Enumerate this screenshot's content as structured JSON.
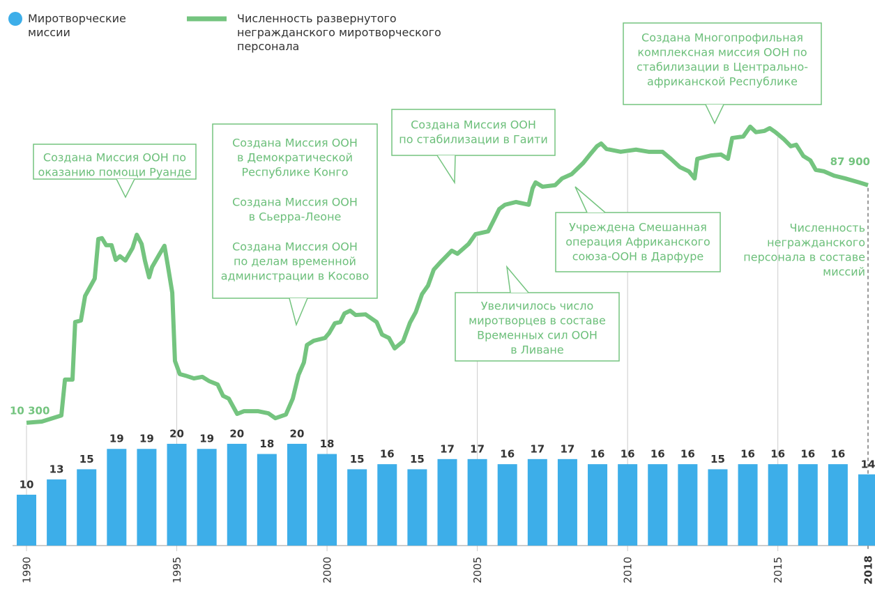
{
  "chart_data": {
    "type": "bar",
    "x": [
      1990,
      1991,
      1992,
      1993,
      1994,
      1995,
      1996,
      1997,
      1998,
      1999,
      2000,
      2001,
      2002,
      2003,
      2004,
      2005,
      2006,
      2007,
      2008,
      2009,
      2010,
      2011,
      2012,
      2013,
      2014,
      2015,
      2016,
      2017,
      2018
    ],
    "series": [
      {
        "name": "Миротворческие миссии",
        "type": "bar",
        "color": "#3daee9",
        "values": [
          10,
          13,
          15,
          19,
          19,
          20,
          19,
          20,
          18,
          20,
          18,
          15,
          16,
          15,
          17,
          17,
          16,
          17,
          17,
          16,
          16,
          16,
          16,
          15,
          16,
          16,
          16,
          16,
          14
        ]
      },
      {
        "name": "Численность развернутого негражданского миротворческого персонала",
        "type": "line",
        "axis": "y2",
        "color": "#74c47f",
        "x": [
          1990,
          1990.51,
          1991.16,
          1991.28,
          1991.53,
          1991.62,
          1991.81,
          1991.95,
          1992.27,
          1992.39,
          1992.51,
          1992.65,
          1992.83,
          1992.97,
          1993.11,
          1993.29,
          1993.53,
          1993.67,
          1993.83,
          1993.94,
          1994.08,
          1994.18,
          1994.41,
          1994.59,
          1994.71,
          1994.85,
          1994.94,
          1995.1,
          1995.29,
          1995.57,
          1995.85,
          1996.08,
          1996.36,
          1996.54,
          1996.73,
          1997.01,
          1997.24,
          1997.7,
          1998.05,
          1998.28,
          1998.63,
          1998.86,
          1999.05,
          1999.23,
          1999.33,
          1999.56,
          1999.93,
          2000.07,
          2000.26,
          2000.44,
          2000.58,
          2000.77,
          2000.95,
          2001.28,
          2001.65,
          2001.83,
          2002.06,
          2002.25,
          2002.53,
          2002.76,
          2002.95,
          2003.16,
          2003.36,
          2003.55,
          2003.78,
          2004.15,
          2004.34,
          2004.71,
          2004.94,
          2005.36,
          2005.55,
          2005.73,
          2005.92,
          2006.29,
          2006.71,
          2006.84,
          2006.94,
          2007.17,
          2007.59,
          2007.82,
          2008.14,
          2008.52,
          2008.75,
          2008.98,
          2009.12,
          2009.3,
          2009.77,
          2010.28,
          2010.7,
          2011.16,
          2011.44,
          2011.74,
          2012.04,
          2012.23,
          2012.32,
          2012.78,
          2013.11,
          2013.34,
          2013.48,
          2013.85,
          2014.08,
          2014.27,
          2014.55,
          2014.73,
          2014.92,
          2015.2,
          2015.43,
          2015.61,
          2015.85,
          2016.08,
          2016.26,
          2016.54,
          2016.87,
          2017.24,
          2017.7,
          2018
        ],
        "values": [
          10300,
          10700,
          12700,
          24400,
          24400,
          43200,
          43700,
          51700,
          57400,
          70300,
          70600,
          68300,
          68300,
          63500,
          64700,
          63300,
          67400,
          71700,
          68700,
          63300,
          57800,
          61200,
          65100,
          68100,
          61200,
          52800,
          30500,
          26200,
          25700,
          24800,
          25300,
          23900,
          22800,
          19100,
          18200,
          13200,
          14100,
          14100,
          13400,
          11800,
          13000,
          18200,
          25900,
          30000,
          35700,
          37100,
          38000,
          39600,
          42800,
          43200,
          46000,
          46900,
          45500,
          45700,
          43200,
          39100,
          38000,
          34600,
          36900,
          43000,
          46400,
          52300,
          55100,
          60300,
          62800,
          66500,
          65500,
          68700,
          71900,
          72800,
          76500,
          80100,
          81500,
          82400,
          81500,
          86900,
          88800,
          87400,
          87900,
          90100,
          91500,
          95100,
          97900,
          100600,
          101500,
          99700,
          98800,
          99500,
          98800,
          98800,
          96500,
          93800,
          92400,
          90100,
          96500,
          97600,
          97900,
          96500,
          103300,
          103800,
          107000,
          105200,
          105600,
          106500,
          105200,
          102900,
          100600,
          101100,
          97400,
          96000,
          92900,
          92400,
          91000,
          90100,
          88800,
          87900
        ],
        "value_labels": [
          "10 300",
          null,
          null,
          null,
          null,
          null,
          null,
          null,
          null,
          null,
          null,
          null,
          null,
          null,
          null,
          null,
          null,
          null,
          null,
          null,
          null,
          null,
          null,
          null,
          null,
          null,
          null,
          null,
          null,
          null,
          null,
          null,
          null,
          null,
          null,
          null,
          null,
          null,
          null,
          null,
          null,
          null,
          null,
          null,
          null,
          null,
          null,
          null,
          null,
          null,
          null,
          null,
          null,
          null,
          null,
          null,
          null,
          null,
          null,
          null,
          null,
          null,
          null,
          null,
          null,
          null,
          null,
          null,
          null,
          null,
          null,
          null,
          null,
          null,
          null,
          null,
          null,
          null,
          null,
          null,
          null,
          null,
          null,
          null,
          null,
          null,
          null,
          null,
          null,
          null,
          null,
          null,
          null,
          null,
          null,
          null,
          null,
          null,
          null,
          null,
          null,
          null,
          null,
          null,
          null,
          null,
          null,
          null,
          null,
          null,
          null,
          null,
          null,
          null,
          null,
          "87 900"
        ]
      }
    ],
    "xlim": [
      1990,
      2018
    ],
    "xticks": [
      1990,
      1995,
      2000,
      2005,
      2010,
      2015,
      2018
    ],
    "ylim": [
      0,
      89
    ],
    "y2lim": [
      -29800,
      118100
    ],
    "annotations": [
      {
        "paragraphs": [
          [
            "Создана Миссия ООН по",
            "оказанию помощи Руанде"
          ]
        ]
      },
      {
        "paragraphs": [
          [
            "Создана Миссия ООН",
            "в Демократической",
            "Республике Конго"
          ],
          [
            "Создана Миссия ООН",
            "в Сьерра-Леоне"
          ],
          [
            "Создана Миссия ООН",
            "по делам временной",
            "администрации в Косово"
          ]
        ]
      },
      {
        "paragraphs": [
          [
            "Создана Миссия ООН",
            "по стабилизации в Гаити"
          ]
        ]
      },
      {
        "paragraphs": [
          [
            "Учреждена Смешанная",
            "операция Африканского",
            "союза-ООН в Дарфуре"
          ]
        ]
      },
      {
        "paragraphs": [
          [
            "Увеличилось число",
            "миротворцев в составе",
            "Временных сил ООН",
            "в Ливане"
          ]
        ]
      },
      {
        "paragraphs": [
          [
            "Создана Многопрофильная",
            "комплексная миссия ООН по",
            "стабилизации в Центрально-",
            "африканской Республике"
          ]
        ]
      }
    ],
    "side_note": [
      "Численность",
      "негражданского",
      "персонала в составе",
      "миссий"
    ]
  }
}
